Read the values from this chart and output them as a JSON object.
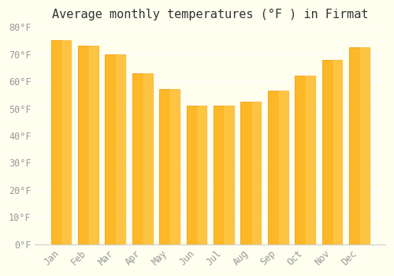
{
  "title": "Average monthly temperatures (°F ) in Firmat",
  "months": [
    "Jan",
    "Feb",
    "Mar",
    "Apr",
    "May",
    "Jun",
    "Jul",
    "Aug",
    "Sep",
    "Oct",
    "Nov",
    "Dec"
  ],
  "values": [
    75,
    73,
    70,
    63,
    57,
    51,
    51,
    52.5,
    56.5,
    62,
    68,
    72.5
  ],
  "bar_color": "#FDB827",
  "bar_edge_color": "#F5A623",
  "background_color": "#FFFFF0",
  "grid_color": "#FFFFFF",
  "ylim": [
    0,
    80
  ],
  "yticks": [
    0,
    10,
    20,
    30,
    40,
    50,
    60,
    70,
    80
  ],
  "ytick_labels": [
    "0°F",
    "10°F",
    "20°F",
    "30°F",
    "40°F",
    "50°F",
    "60°F",
    "70°F",
    "80°F"
  ],
  "title_fontsize": 11,
  "tick_fontsize": 8.5,
  "title_color": "#333333",
  "tick_color": "#999999"
}
